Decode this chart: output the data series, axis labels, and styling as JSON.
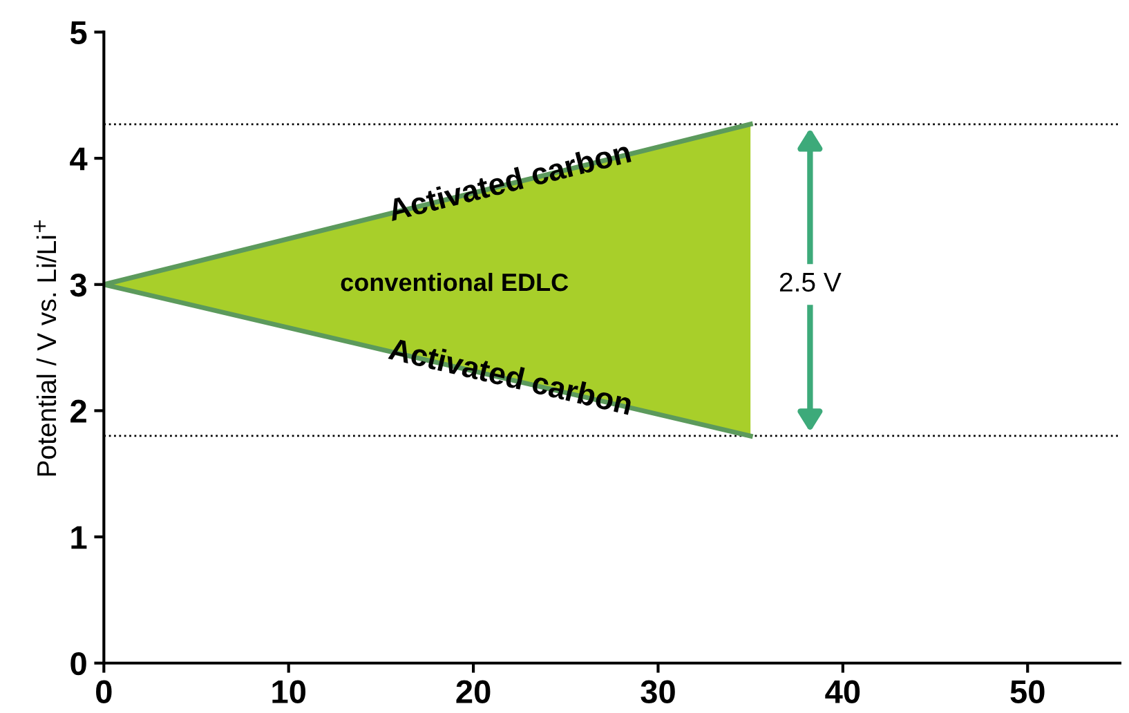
{
  "chart_data": {
    "type": "line",
    "ylabel": "Potential / V vs. Li/Li$^{+}$",
    "series": [
      {
        "color": "#5c9a5c",
        "values": [
          3,
          4.27
        ],
        "lower": [
          3,
          1.8
        ],
        "upper": [
          3,
          4.27
        ]
      },
      {
        "color": "#5c9a5c",
        "values": [
          3,
          1.8
        ]
      }
    ],
    "x": [
      0,
      35
    ],
    "xlim": [
      0,
      55
    ],
    "ylim": [
      0,
      5
    ],
    "xticks": [
      0,
      10,
      20,
      30,
      40,
      50
    ],
    "yticks": [
      0,
      1,
      2,
      3,
      4,
      5
    ],
    "ref_lines": [
      {
        "axis": "y",
        "value": 4.27,
        "color": "#000000",
        "line_style": "dotted"
      },
      {
        "axis": "y",
        "value": 1.8,
        "color": "#000000",
        "line_style": "dotted"
      }
    ],
    "annotations": [
      {
        "text": "Activated carbon",
        "x": 22,
        "y": 3.8
      },
      {
        "text": "Activated carbon",
        "x": 22,
        "y": 2.25
      },
      "conventional EDLC",
      "2.5 V"
    ],
    "grid": false,
    "legend": false,
    "marker": "none",
    "line_style": "solid"
  }
}
